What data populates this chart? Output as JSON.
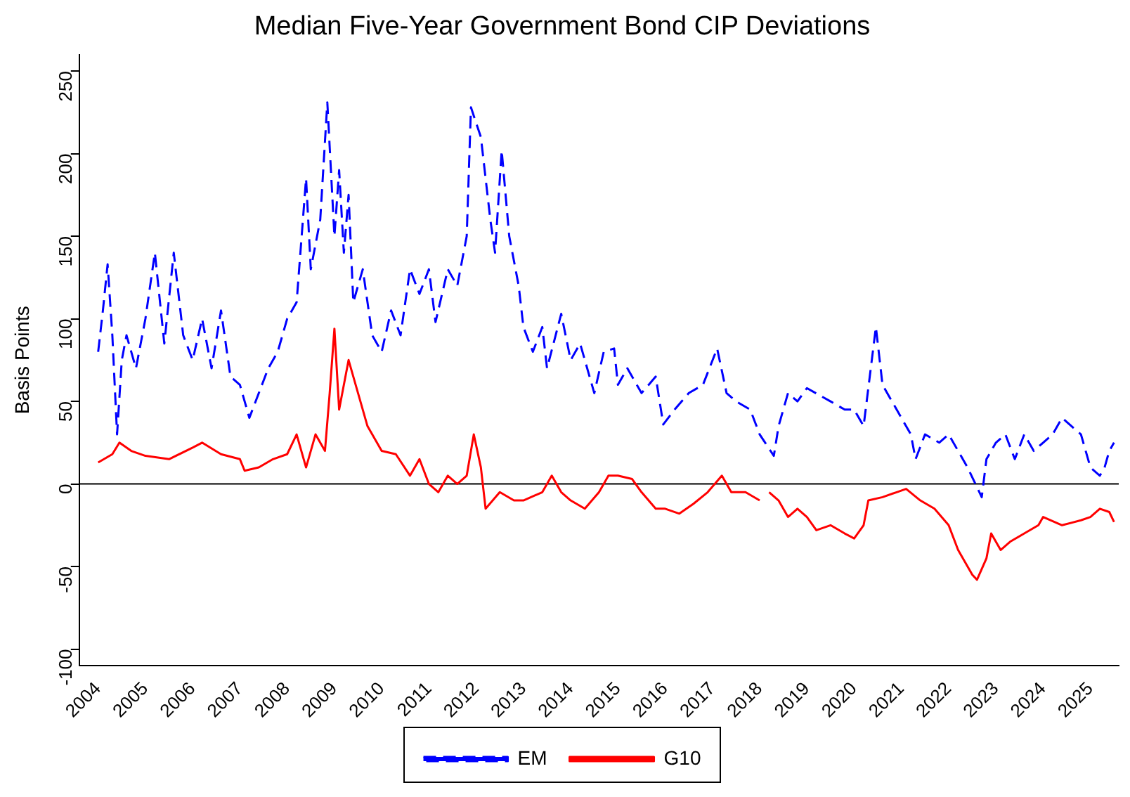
{
  "chart_data": {
    "type": "line",
    "title": "Median Five-Year Government Bond CIP Deviations",
    "ylabel": "Basis Points",
    "xlim": [
      2003.6,
      2025.6
    ],
    "xticks": [
      2004,
      2005,
      2006,
      2007,
      2008,
      2009,
      2010,
      2011,
      2012,
      2013,
      2014,
      2015,
      2016,
      2017,
      2018,
      2019,
      2020,
      2021,
      2022,
      2023,
      2024,
      2025
    ],
    "ylim": [
      -110,
      260
    ],
    "yticks": [
      -100,
      -50,
      0,
      50,
      100,
      150,
      200,
      250
    ],
    "grid": false,
    "legend": "bottom",
    "marker": "none",
    "ref_lines": [
      {
        "axis": "y",
        "value": 0,
        "color": "#000000"
      }
    ],
    "series": [
      {
        "name": "EM",
        "color": "#0000ff",
        "line_style": "dashed",
        "x": [
          2004.0,
          2004.1,
          2004.2,
          2004.3,
          2004.4,
          2004.5,
          2004.6,
          2004.8,
          2005.0,
          2005.2,
          2005.4,
          2005.6,
          2005.8,
          2006.0,
          2006.2,
          2006.4,
          2006.6,
          2006.8,
          2007.0,
          2007.2,
          2007.4,
          2007.6,
          2007.8,
          2008.0,
          2008.2,
          2008.4,
          2008.5,
          2008.7,
          2008.85,
          2009.0,
          2009.1,
          2009.2,
          2009.3,
          2009.4,
          2009.6,
          2009.8,
          2010.0,
          2010.2,
          2010.4,
          2010.6,
          2010.8,
          2011.0,
          2011.14,
          2011.4,
          2011.6,
          2011.8,
          2011.89,
          2012.1,
          2012.3,
          2012.4,
          2012.54,
          2012.7,
          2012.9,
          2013.0,
          2013.2,
          2013.4,
          2013.5,
          2013.8,
          2014.0,
          2014.2,
          2014.5,
          2014.7,
          2014.92,
          2015.0,
          2015.2,
          2015.5,
          2015.8,
          2015.96,
          2016.2,
          2016.5,
          2016.8,
          2017.1,
          2017.3,
          2017.5,
          2017.8,
          2018.0,
          2018.3,
          2018.4,
          2018.6,
          2018.8,
          2019.0,
          2019.5,
          2019.8,
          2020.0,
          2020.2,
          2020.46,
          2020.6,
          2020.8,
          2021.0,
          2021.2,
          2021.3,
          2021.5,
          2021.8,
          2022.0,
          2022.2,
          2022.4,
          2022.7,
          2022.8,
          2023.0,
          2023.2,
          2023.4,
          2023.6,
          2023.8,
          2024.0,
          2024.2,
          2024.4,
          2024.6,
          2024.8,
          2025.0,
          2025.2,
          2025.3,
          2025.4,
          2025.5
        ],
        "values": [
          80,
          105,
          133,
          90,
          30,
          75,
          90,
          70,
          100,
          140,
          85,
          140,
          90,
          75,
          100,
          70,
          105,
          65,
          60,
          40,
          55,
          70,
          80,
          100,
          110,
          185,
          130,
          160,
          231,
          150,
          190,
          140,
          175,
          110,
          130,
          90,
          80,
          105,
          90,
          130,
          115,
          130,
          98,
          130,
          120,
          150,
          228,
          210,
          160,
          140,
          202,
          150,
          120,
          95,
          80,
          95,
          70,
          103,
          75,
          85,
          55,
          80,
          82,
          60,
          70,
          55,
          65,
          36,
          45,
          55,
          60,
          82,
          55,
          50,
          45,
          30,
          17,
          35,
          55,
          50,
          58,
          50,
          45,
          45,
          35,
          95,
          60,
          50,
          40,
          30,
          15,
          30,
          25,
          30,
          20,
          10,
          -8,
          15,
          25,
          30,
          15,
          30,
          20,
          25,
          30,
          40,
          35,
          30,
          10,
          5,
          10,
          20,
          25
        ]
      },
      {
        "name": "G10",
        "color": "#ff0000",
        "line_style": "solid",
        "x": [
          2004.0,
          2004.3,
          2004.45,
          2004.7,
          2005.0,
          2005.5,
          2006.0,
          2006.2,
          2006.6,
          2007.0,
          2007.1,
          2007.4,
          2007.7,
          2008.0,
          2008.2,
          2008.4,
          2008.6,
          2008.8,
          2008.9,
          2009.0,
          2009.1,
          2009.3,
          2009.5,
          2009.7,
          2010.0,
          2010.3,
          2010.6,
          2010.8,
          2011.0,
          2011.2,
          2011.4,
          2011.6,
          2011.8,
          2011.95,
          2012.1,
          2012.2,
          2012.5,
          2012.8,
          2013.0,
          2013.4,
          2013.6,
          2013.8,
          2014.0,
          2014.3,
          2014.6,
          2014.8,
          2015.0,
          2015.3,
          2015.5,
          2015.8,
          2016.0,
          2016.3,
          2016.6,
          2016.9,
          2017.2,
          2017.4,
          2017.7,
          2018.0,
          2018.05,
          2018.2,
          2018.4,
          2018.6,
          2018.8,
          2019.0,
          2019.2,
          2019.5,
          2019.8,
          2020.0,
          2020.2,
          2020.3,
          2020.6,
          2020.9,
          2021.1,
          2021.4,
          2021.7,
          2022.0,
          2022.2,
          2022.4,
          2022.5,
          2022.6,
          2022.8,
          2022.9,
          2023.1,
          2023.3,
          2023.6,
          2023.9,
          2024.0,
          2024.4,
          2024.8,
          2025.0,
          2025.2,
          2025.4,
          2025.5
        ],
        "values": [
          13,
          18,
          25,
          20,
          17,
          15,
          22,
          25,
          18,
          15,
          8,
          10,
          15,
          18,
          30,
          10,
          30,
          20,
          55,
          94,
          45,
          75,
          55,
          35,
          20,
          18,
          5,
          15,
          0,
          -5,
          5,
          0,
          5,
          30,
          10,
          -15,
          -5,
          -10,
          -10,
          -5,
          5,
          -5,
          -10,
          -15,
          -5,
          5,
          5,
          3,
          -5,
          -15,
          -15,
          -18,
          -12,
          -5,
          5,
          -5,
          -5,
          -10,
          null,
          -5,
          -10,
          -20,
          -15,
          -20,
          -28,
          -25,
          -30,
          -33,
          -25,
          -10,
          -8,
          -5,
          -3,
          -10,
          -15,
          -25,
          -40,
          -50,
          -55,
          -58,
          -45,
          -30,
          -40,
          -35,
          -30,
          -25,
          -20,
          -25,
          -22,
          -20,
          -15,
          -17,
          -23
        ]
      }
    ]
  }
}
